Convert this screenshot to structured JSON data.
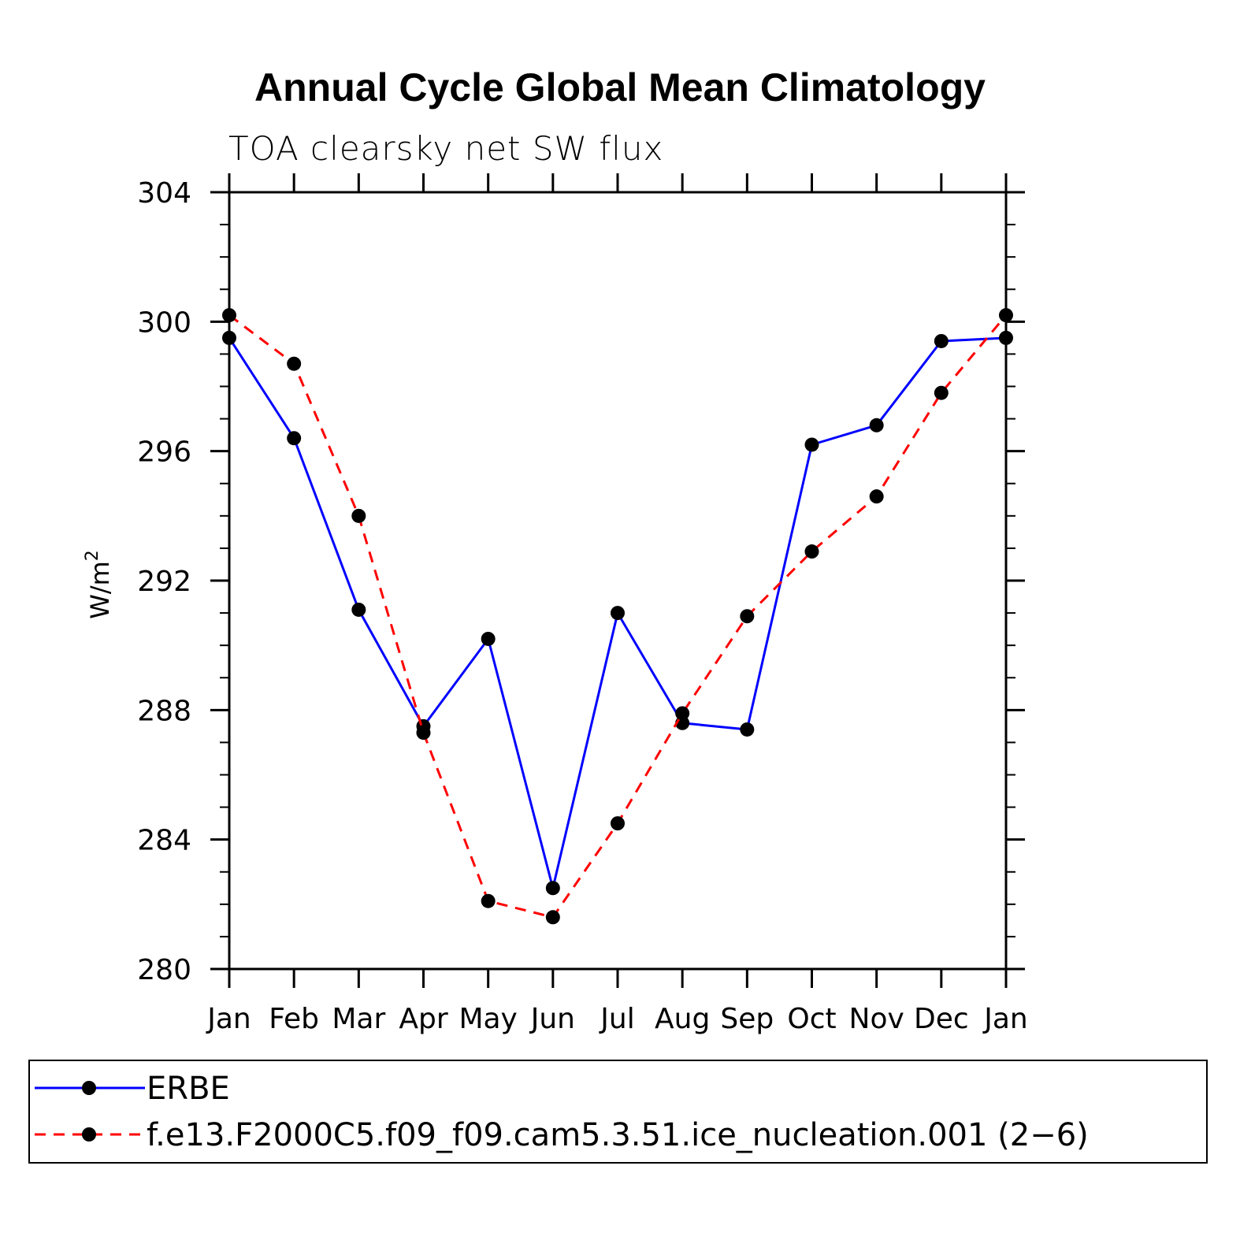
{
  "chart_data": {
    "type": "line",
    "title": "Annual Cycle Global Mean Climatology",
    "subtitle": "TOA clearsky net SW flux",
    "ylabel": "W/m",
    "ylabel_superscript": "2",
    "xlabel": "",
    "categories": [
      "Jan",
      "Feb",
      "Mar",
      "Apr",
      "May",
      "Jun",
      "Jul",
      "Aug",
      "Sep",
      "Oct",
      "Nov",
      "Dec",
      "Jan"
    ],
    "ylim": [
      280,
      304
    ],
    "yticks": [
      "280",
      "284",
      "288",
      "292",
      "296",
      "300",
      "304"
    ],
    "grid": false,
    "legend_position": "bottom",
    "series": [
      {
        "name": "ERBE",
        "color": "#0000ff",
        "style": "solid",
        "marker": "circle",
        "values": [
          299.5,
          296.4,
          291.1,
          287.5,
          290.2,
          282.5,
          291.0,
          287.6,
          287.4,
          296.2,
          296.8,
          299.4,
          299.5
        ]
      },
      {
        "name": "f.e13.F2000C5.f09_f09.cam5.3.51.ice_nucleation.001 (2−6)",
        "color": "#ff0000",
        "style": "dashed",
        "marker": "circle",
        "values": [
          300.2,
          298.7,
          294.0,
          287.3,
          282.1,
          281.6,
          284.5,
          287.9,
          290.9,
          292.9,
          294.6,
          297.8,
          300.2
        ]
      }
    ]
  }
}
